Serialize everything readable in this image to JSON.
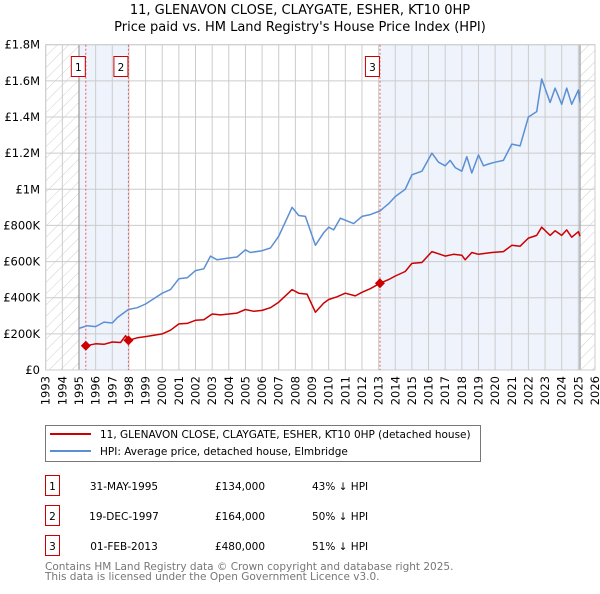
{
  "title_line1": "11, GLENAVON CLOSE, CLAYGATE, ESHER, KT10 0HP",
  "title_line2": "Price paid vs. HM Land Registry's House Price Index (HPI)",
  "colors": {
    "property": "#cc0000",
    "hpi": "#5b8fd4",
    "shade": "#eef3fc",
    "grid": "#cccccc"
  },
  "chart_data": {
    "type": "line",
    "title": "11, GLENAVON CLOSE, CLAYGATE, ESHER, KT10 0HP — Price paid vs. HM Land Registry's House Price Index (HPI)",
    "xlim": [
      1993,
      2026
    ],
    "ylim": [
      0,
      1800000
    ],
    "grid": true,
    "y_ticks": [
      0,
      200000,
      400000,
      600000,
      800000,
      1000000,
      1200000,
      1400000,
      1600000,
      1800000
    ],
    "y_tick_labels": [
      "£0",
      "£200K",
      "£400K",
      "£600K",
      "£800K",
      "£1M",
      "£1.2M",
      "£1.4M",
      "£1.6M",
      "£1.8M"
    ],
    "x_ticks": [
      1993,
      1994,
      1995,
      1996,
      1997,
      1998,
      1999,
      2000,
      2001,
      2002,
      2003,
      2004,
      2005,
      2006,
      2007,
      2008,
      2009,
      2010,
      2011,
      2012,
      2013,
      2014,
      2015,
      2016,
      2017,
      2018,
      2019,
      2020,
      2021,
      2022,
      2023,
      2024,
      2025,
      2026
    ],
    "data_range": [
      1995.0,
      2025.1
    ],
    "series": [
      {
        "name": "11, GLENAVON CLOSE, CLAYGATE, ESHER, KT10 0HP (detached house)",
        "color": "#cc0000",
        "x": [
          1995.41,
          1996,
          1996.5,
          1997,
          1997.5,
          1997.8,
          1997.97,
          1998.5,
          1999,
          2000,
          2000.5,
          2001,
          2001.5,
          2002,
          2002.5,
          2003,
          2003.5,
          2004,
          2004.5,
          2005,
          2005.5,
          2006,
          2006.5,
          2007,
          2007.8,
          2008.2,
          2008.7,
          2009.2,
          2009.7,
          2010,
          2010.5,
          2011,
          2011.6,
          2012,
          2012.5,
          2013.08,
          2013.6,
          2014,
          2014.6,
          2015,
          2015.6,
          2016.2,
          2016.7,
          2017,
          2017.5,
          2018,
          2018.2,
          2018.6,
          2019,
          2019.4,
          2019.8,
          2020.5,
          2021,
          2021.5,
          2022,
          2022.5,
          2022.8,
          2023.3,
          2023.6,
          2024,
          2024.3,
          2024.6,
          2025,
          2025.1
        ],
        "y": [
          134000,
          145000,
          142000,
          155000,
          152000,
          190000,
          164000,
          178000,
          185000,
          200000,
          220000,
          255000,
          258000,
          275000,
          278000,
          310000,
          305000,
          310000,
          315000,
          335000,
          325000,
          330000,
          345000,
          375000,
          445000,
          425000,
          420000,
          320000,
          370000,
          390000,
          405000,
          425000,
          410000,
          430000,
          450000,
          480000,
          500000,
          520000,
          545000,
          590000,
          595000,
          655000,
          640000,
          630000,
          640000,
          635000,
          610000,
          650000,
          640000,
          645000,
          650000,
          655000,
          690000,
          685000,
          730000,
          745000,
          790000,
          745000,
          770000,
          745000,
          775000,
          735000,
          765000,
          740000
        ]
      },
      {
        "name": "HPI: Average price, detached house, Elmbridge",
        "color": "#5b8fd4",
        "x": [
          1995.0,
          1995.5,
          1996,
          1996.5,
          1997,
          1997.3,
          1997.97,
          1998.5,
          1999,
          2000,
          2000.5,
          2001,
          2001.5,
          2002,
          2002.5,
          2002.9,
          2003.3,
          2004,
          2004.5,
          2005,
          2005.3,
          2006,
          2006.5,
          2007,
          2007.8,
          2008.2,
          2008.6,
          2009.2,
          2009.7,
          2010,
          2010.3,
          2010.7,
          2011.5,
          2012,
          2012.5,
          2013.08,
          2013.6,
          2014,
          2014.6,
          2015,
          2015.6,
          2016.2,
          2016.6,
          2017,
          2017.3,
          2017.6,
          2018,
          2018.3,
          2018.6,
          2019,
          2019.3,
          2019.6,
          2020,
          2020.5,
          2021,
          2021.5,
          2022,
          2022.5,
          2022.8,
          2023.3,
          2023.6,
          2024,
          2024.3,
          2024.6,
          2025,
          2025.1
        ],
        "y": [
          230000,
          245000,
          240000,
          265000,
          260000,
          290000,
          335000,
          345000,
          365000,
          425000,
          445000,
          505000,
          510000,
          550000,
          560000,
          630000,
          610000,
          620000,
          625000,
          665000,
          650000,
          660000,
          675000,
          740000,
          900000,
          855000,
          850000,
          690000,
          760000,
          790000,
          775000,
          840000,
          810000,
          850000,
          860000,
          880000,
          920000,
          960000,
          1000000,
          1080000,
          1100000,
          1200000,
          1150000,
          1130000,
          1160000,
          1120000,
          1100000,
          1180000,
          1090000,
          1190000,
          1130000,
          1140000,
          1150000,
          1160000,
          1250000,
          1240000,
          1400000,
          1430000,
          1610000,
          1480000,
          1560000,
          1470000,
          1560000,
          1470000,
          1550000,
          1480000
        ]
      }
    ],
    "sales": [
      {
        "label": "1",
        "x": 1995.41,
        "y": 134000
      },
      {
        "label": "2",
        "x": 1997.97,
        "y": 164000
      },
      {
        "label": "3",
        "x": 2013.08,
        "y": 480000
      }
    ]
  },
  "legend": [
    {
      "label": "11, GLENAVON CLOSE, CLAYGATE, ESHER, KT10 0HP (detached house)"
    },
    {
      "label": "HPI: Average price, detached house, Elmbridge"
    }
  ],
  "table": [
    {
      "num": "1",
      "date": "31-MAY-1995",
      "price": "£134,000",
      "delta": "43% ↓ HPI"
    },
    {
      "num": "2",
      "date": "19-DEC-1997",
      "price": "£164,000",
      "delta": "50% ↓ HPI"
    },
    {
      "num": "3",
      "date": "01-FEB-2013",
      "price": "£480,000",
      "delta": "51% ↓ HPI"
    }
  ],
  "footer": [
    "Contains HM Land Registry data © Crown copyright and database right 2025.",
    "This data is licensed under the Open Government Licence v3.0."
  ]
}
